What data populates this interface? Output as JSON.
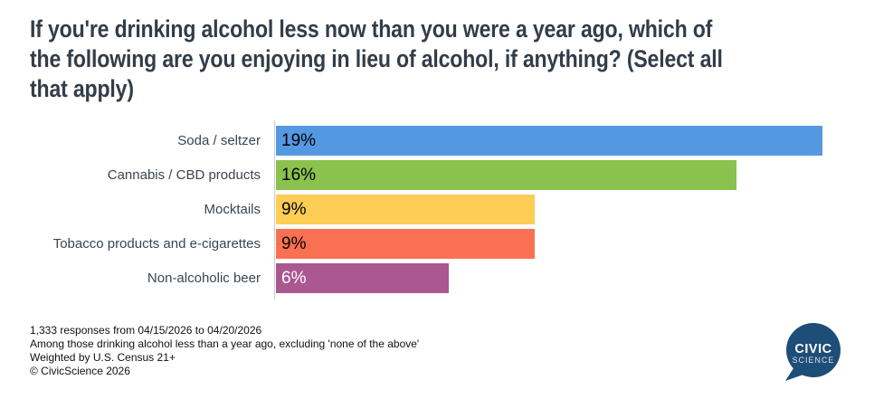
{
  "title": {
    "lines": [
      "If you're drinking alcohol less now than you were a year ago, which of",
      "the following are you enjoying in lieu of alcohol, if anything? (Select all",
      "that apply)"
    ]
  },
  "chart_data": {
    "type": "bar",
    "orientation": "horizontal",
    "title": "If you're drinking alcohol less now than you were a year ago, which of the following are you enjoying in lieu of alcohol, if anything? (Select all that apply)",
    "categories": [
      "Soda / seltzer",
      "Cannabis / CBD products",
      "Mocktails",
      "Tobacco products and e-cigarettes",
      "Non-alcoholic beer"
    ],
    "values": [
      19,
      16,
      9,
      9,
      6
    ],
    "value_labels": [
      "19%",
      "16%",
      "9%",
      "9%",
      "6%"
    ],
    "bar_colors": [
      "#5598E2",
      "#8AC24D",
      "#FDCD55",
      "#FA7053",
      "#AB5790"
    ],
    "value_label_colors": [
      "#000000",
      "#000000",
      "#000000",
      "#000000",
      "#FFFFFF"
    ],
    "xlabel": "",
    "ylabel": "",
    "xlim": [
      0,
      20
    ],
    "grid": false,
    "legend": false
  },
  "footer": {
    "lines": [
      "1,333 responses from 04/15/2026 to 04/20/2026",
      "Among those drinking alcohol less than a year ago, excluding 'none of the above'",
      "Weighted by U.S. Census 21+",
      "© CivicScience 2026"
    ]
  },
  "logo": {
    "line1": "CIVIC",
    "line2": "SCIENCE",
    "color": "#1D4E78"
  },
  "colors": {
    "title": "#333D49",
    "category_label": "#3A4551",
    "axis_line": "#CCCCCC",
    "background": "#FFFFFF"
  }
}
